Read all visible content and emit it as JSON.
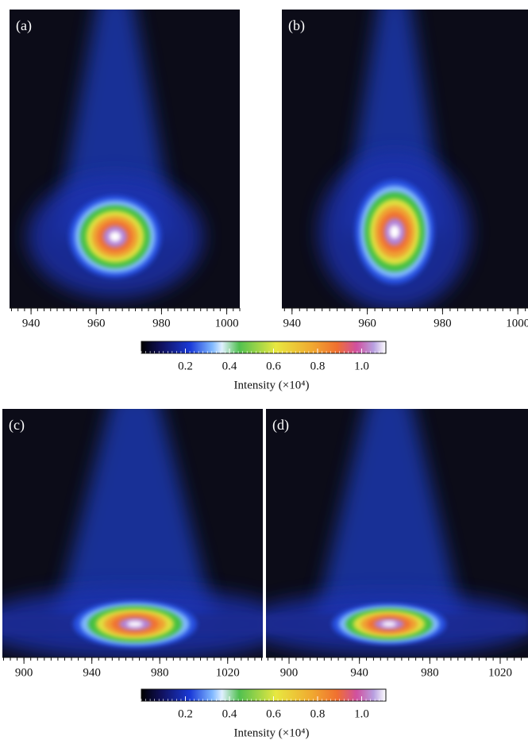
{
  "chart_data": [
    {
      "type": "heatmap",
      "label": "(a)",
      "xlim": [
        933.4,
        1004
      ],
      "xticks": [
        940,
        960,
        980,
        1000
      ]
    },
    {
      "type": "heatmap",
      "label": "(b)",
      "xlim": [
        937.3,
        1002.7
      ],
      "xticks": [
        940,
        960,
        980,
        1000
      ]
    },
    {
      "type": "heatmap",
      "label": "(c)",
      "xlim": [
        887.3,
        1040.7
      ],
      "xticks": [
        900,
        940,
        980,
        1020
      ]
    },
    {
      "type": "heatmap",
      "label": "(d)",
      "xlim": [
        886.9,
        1035.8
      ],
      "xticks": [
        900,
        940,
        980,
        1020
      ]
    },
    {
      "type": "colorbar",
      "clim": [
        0,
        1.11
      ],
      "ticks": [
        0.2,
        0.4,
        0.6,
        0.8,
        {
          "value": 1,
          "label": "1.0"
        }
      ],
      "label": "Intensity (×10⁴)"
    },
    {
      "type": "colorbar",
      "clim": [
        0,
        1.11
      ],
      "ticks": [
        0.2,
        0.4,
        0.6,
        0.8,
        {
          "value": 1,
          "label": "1.0"
        }
      ],
      "label": "Intensity (×10⁴)"
    }
  ]
}
